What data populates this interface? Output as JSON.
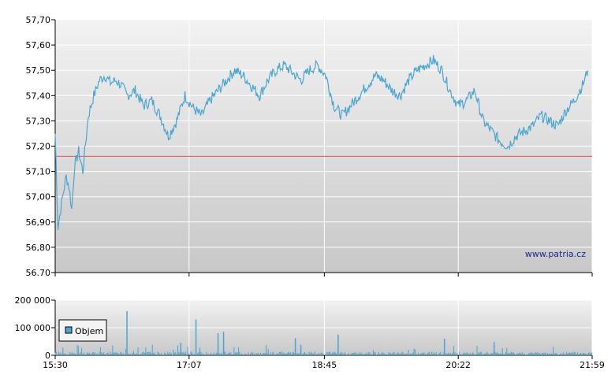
{
  "chart_data": [
    {
      "type": "line",
      "title": "",
      "ylim": [
        56.7,
        57.7
      ],
      "yticks": [
        "57,70",
        "57,60",
        "57,50",
        "57,40",
        "57,30",
        "57,20",
        "57,10",
        "57,00",
        "56,90",
        "56,80",
        "56.70"
      ],
      "reference_line": {
        "value": 57.16,
        "color": "#e05050"
      },
      "watermark": "www.patria.cz",
      "grid": true,
      "line_color": "#4aa6d0",
      "series": [
        {
          "x_minutes_from_1530": [
            0,
            2,
            4,
            6,
            8,
            10,
            12,
            14,
            17,
            20,
            24,
            28,
            32,
            36,
            40,
            44,
            48,
            52,
            58,
            64,
            70,
            76,
            82,
            88,
            94,
            100,
            106,
            112,
            118,
            124,
            130,
            136,
            142,
            148,
            154,
            160,
            166,
            172,
            178,
            184,
            190,
            196,
            202,
            208,
            214,
            220,
            226,
            232,
            238,
            244,
            250,
            256,
            262,
            268,
            274,
            280,
            286,
            292,
            298,
            304,
            310,
            316,
            322,
            328,
            334,
            340,
            346,
            352,
            358,
            364,
            370,
            376,
            382,
            386
          ],
          "values": [
            57.25,
            56.88,
            56.95,
            57.02,
            57.08,
            57.04,
            56.95,
            57.12,
            57.18,
            57.1,
            57.32,
            57.4,
            57.46,
            57.48,
            57.45,
            57.46,
            57.44,
            57.4,
            57.42,
            57.36,
            57.38,
            57.32,
            57.24,
            57.3,
            57.4,
            57.35,
            57.32,
            57.38,
            57.42,
            57.46,
            57.5,
            57.48,
            57.44,
            57.4,
            57.46,
            57.5,
            57.52,
            57.49,
            57.46,
            57.5,
            57.52,
            57.48,
            57.36,
            57.32,
            57.36,
            57.4,
            57.44,
            57.48,
            57.46,
            57.42,
            57.4,
            57.46,
            57.5,
            57.52,
            57.54,
            57.5,
            57.42,
            57.36,
            57.38,
            57.42,
            57.3,
            57.26,
            57.22,
            57.2,
            57.24,
            57.26,
            57.28,
            57.32,
            57.3,
            57.28,
            57.34,
            57.38,
            57.44,
            57.5
          ]
        }
      ]
    },
    {
      "type": "bar",
      "title": "",
      "ylim": [
        0,
        200000
      ],
      "yticks": [
        "200 000",
        "100 000",
        "0"
      ],
      "bar_color": "#4aa6d0",
      "legend": {
        "label": "Objem",
        "placement": "left"
      },
      "xticks": [
        "15:30",
        "17:07",
        "18:45",
        "20:22",
        "21:59"
      ],
      "series": [
        {
          "name": "Objem",
          "spikes": [
            {
              "x_minutes_from_1530": 52,
              "value": 160000
            },
            {
              "x_minutes_from_1530": 91,
              "value": 45000
            },
            {
              "x_minutes_from_1530": 102,
              "value": 130000
            },
            {
              "x_minutes_from_1530": 118,
              "value": 80000
            },
            {
              "x_minutes_from_1530": 122,
              "value": 85000
            },
            {
              "x_minutes_from_1530": 174,
              "value": 62000
            },
            {
              "x_minutes_from_1530": 178,
              "value": 38000
            },
            {
              "x_minutes_from_1530": 205,
              "value": 75000
            },
            {
              "x_minutes_from_1530": 282,
              "value": 60000
            },
            {
              "x_minutes_from_1530": 318,
              "value": 48000
            }
          ],
          "baseline_level": 8000
        }
      ]
    }
  ]
}
